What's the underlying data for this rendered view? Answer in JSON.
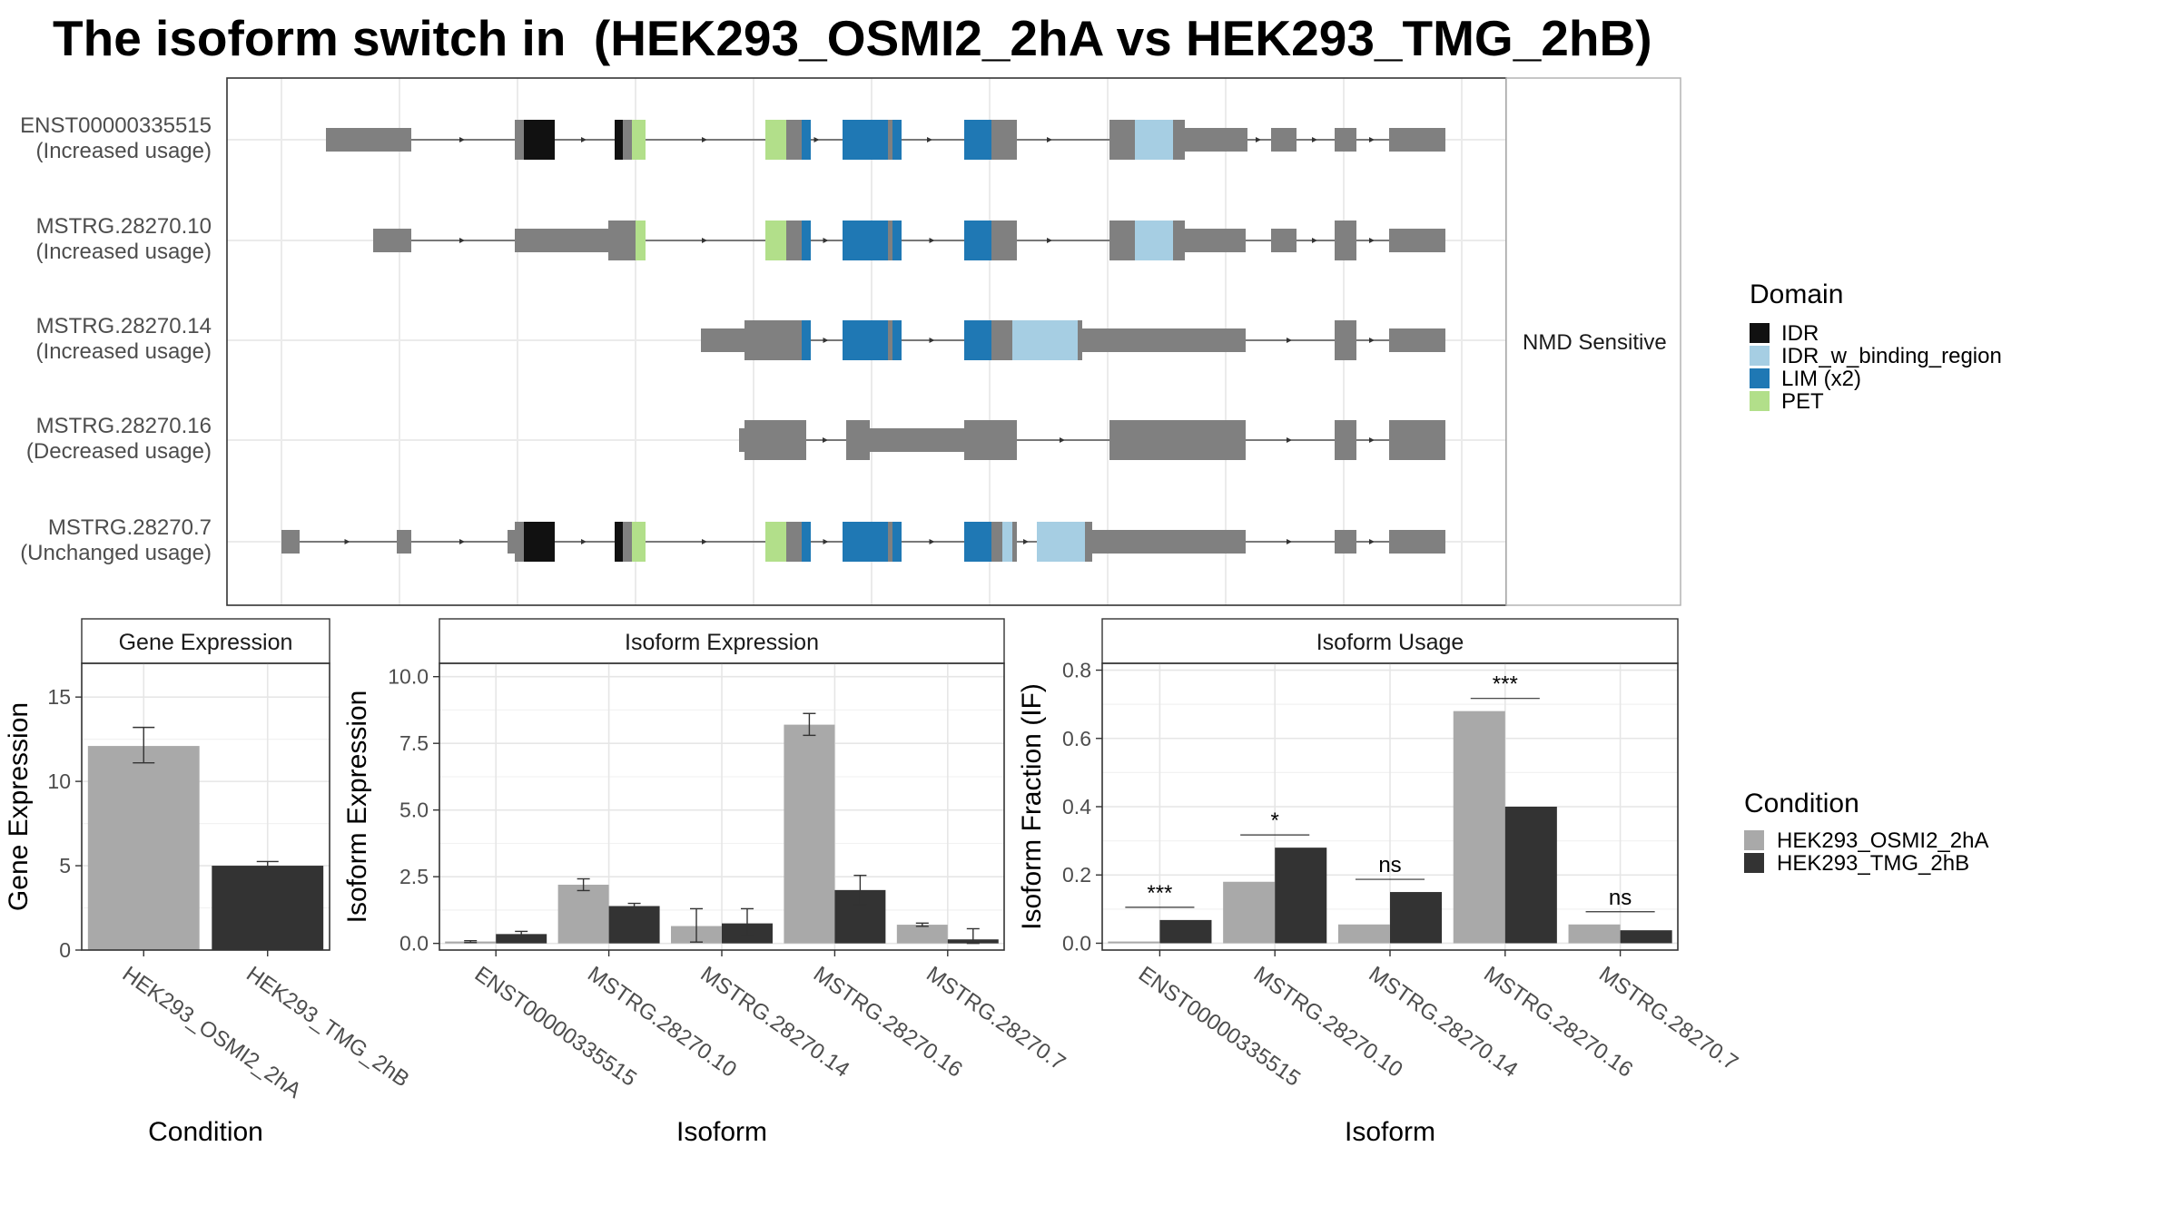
{
  "title": "The isoform switch in  (HEK293_OSMI2_2hA vs HEK293_TMG_2hB)",
  "side_label": "NMD Sensitive",
  "domain_legend": {
    "title": "Domain",
    "items": [
      {
        "name": "IDR",
        "color": "#111111"
      },
      {
        "name": "IDR_w_binding_region",
        "color": "#a6cee3"
      },
      {
        "name": "LIM (x2)",
        "color": "#1f78b4"
      },
      {
        "name": "PET",
        "color": "#b2df8a"
      }
    ]
  },
  "condition_legend": {
    "title": "Condition",
    "items": [
      {
        "name": "HEK293_OSMI2_2hA",
        "color": "#a9a9a9"
      },
      {
        "name": "HEK293_TMG_2hB",
        "color": "#333333"
      }
    ]
  },
  "isoforms": [
    {
      "name": "ENST00000335515",
      "usage": "(Increased usage)"
    },
    {
      "name": "MSTRG.28270.10",
      "usage": "(Increased usage)"
    },
    {
      "name": "MSTRG.28270.14",
      "usage": "(Increased usage)"
    },
    {
      "name": "MSTRG.28270.16",
      "usage": "(Decreased usage)"
    },
    {
      "name": "MSTRG.28270.7",
      "usage": "(Unchanged usage)"
    }
  ],
  "chart_data": [
    {
      "type": "bar",
      "title": "Gene Expression",
      "xlabel": "Condition",
      "ylabel": "Gene Expression",
      "categories": [
        "HEK293_OSMI2_2hA",
        "HEK293_TMG_2hB"
      ],
      "ylim": [
        0,
        17
      ],
      "yticks": [
        0,
        5,
        10,
        15
      ],
      "ytick_labels": [
        "0",
        "5",
        "10",
        "15"
      ],
      "values": [
        12.1,
        5.0
      ],
      "errors": [
        [
          11.1,
          13.2
        ],
        [
          4.85,
          5.25
        ]
      ],
      "colors": [
        "#a9a9a9",
        "#333333"
      ]
    },
    {
      "type": "bar",
      "title": "Isoform Expression",
      "xlabel": "Isoform",
      "ylabel": "Isoform Expression",
      "categories": [
        "ENST00000335515",
        "MSTRG.28270.10",
        "MSTRG.28270.14",
        "MSTRG.28270.16",
        "MSTRG.28270.7"
      ],
      "ylim": [
        -0.25,
        10.5
      ],
      "yticks": [
        0,
        2.5,
        5,
        7.5,
        10
      ],
      "ytick_labels": [
        "0.0",
        "2.5",
        "5.0",
        "7.5",
        "10.0"
      ],
      "series": [
        {
          "name": "HEK293_OSMI2_2hA",
          "values": [
            0.07,
            2.2,
            0.65,
            8.2,
            0.7
          ],
          "errors": [
            [
              0.03,
              0.1
            ],
            [
              1.98,
              2.42
            ],
            [
              0.05,
              1.3
            ],
            [
              7.8,
              8.62
            ],
            [
              0.64,
              0.76
            ]
          ]
        },
        {
          "name": "HEK293_TMG_2hB",
          "values": [
            0.35,
            1.4,
            0.75,
            2.0,
            0.15
          ],
          "errors": [
            [
              0.25,
              0.45
            ],
            [
              1.32,
              1.5
            ],
            [
              0.25,
              1.3
            ],
            [
              1.45,
              2.55
            ],
            [
              0.0,
              0.55
            ]
          ]
        }
      ]
    },
    {
      "type": "bar",
      "title": "Isoform Usage",
      "xlabel": "Isoform",
      "ylabel": "Isoform Fraction (IF)",
      "categories": [
        "ENST00000335515",
        "MSTRG.28270.10",
        "MSTRG.28270.14",
        "MSTRG.28270.16",
        "MSTRG.28270.7"
      ],
      "ylim": [
        -0.02,
        0.82
      ],
      "yticks": [
        0,
        0.2,
        0.4,
        0.6,
        0.8
      ],
      "ytick_labels": [
        "0.0",
        "0.2",
        "0.4",
        "0.6",
        "0.8"
      ],
      "series": [
        {
          "name": "HEK293_OSMI2_2hA",
          "values": [
            0.005,
            0.18,
            0.055,
            0.68,
            0.055
          ]
        },
        {
          "name": "HEK293_TMG_2hB",
          "values": [
            0.068,
            0.28,
            0.15,
            0.4,
            0.038
          ]
        }
      ],
      "significance": [
        "***",
        "*",
        "ns",
        "***",
        "ns"
      ]
    }
  ]
}
